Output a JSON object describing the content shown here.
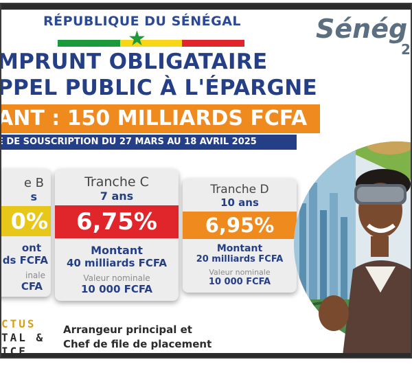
{
  "header": {
    "republic": "RÉPUBLIQUE DU SÉNÉGAL",
    "brand": "Sénég",
    "brand_sub": "2"
  },
  "title": {
    "line1": "MPRUNT OBLIGATAIRE",
    "line2": "PPEL PUBLIC À L'ÉPARGNE"
  },
  "amount_band": "ANT : 150 MILLIARDS FCFA",
  "period_band": "E DE SOUSCRIPTION DU 27 MARS AU 18 AVRIL 2025",
  "colors": {
    "navy": "#243f86",
    "orange": "#ef8a1e",
    "red": "#e0262a",
    "yellow": "#e7c71a",
    "green": "#1a9a3a"
  },
  "tranches": [
    {
      "name": "e B",
      "years": "s",
      "rate": "0%",
      "amount_label": "ont",
      "amount_value": "ds FCFA",
      "nominal_label": "inale",
      "nominal_value": "CFA"
    },
    {
      "name": "Tranche C",
      "years": "7 ans",
      "rate": "6,75%",
      "amount_label": "Montant",
      "amount_value": "40 milliards FCFA",
      "nominal_label": "Valeur nominale",
      "nominal_value": "10 000 FCFA"
    },
    {
      "name": "Tranche D",
      "years": "10 ans",
      "rate": "6,95%",
      "amount_label": "Montant",
      "amount_value": "20 milliards FCFA",
      "nominal_label": "Valeur nominale",
      "nominal_value": "10 000 FCFA"
    }
  ],
  "footer": {
    "logo_line1": "CTUS",
    "logo_line2": "TAL &",
    "logo_line3": "ICE",
    "arranger_line1": "Arrangeur principal et",
    "arranger_line2": "Chef de file de placement"
  }
}
